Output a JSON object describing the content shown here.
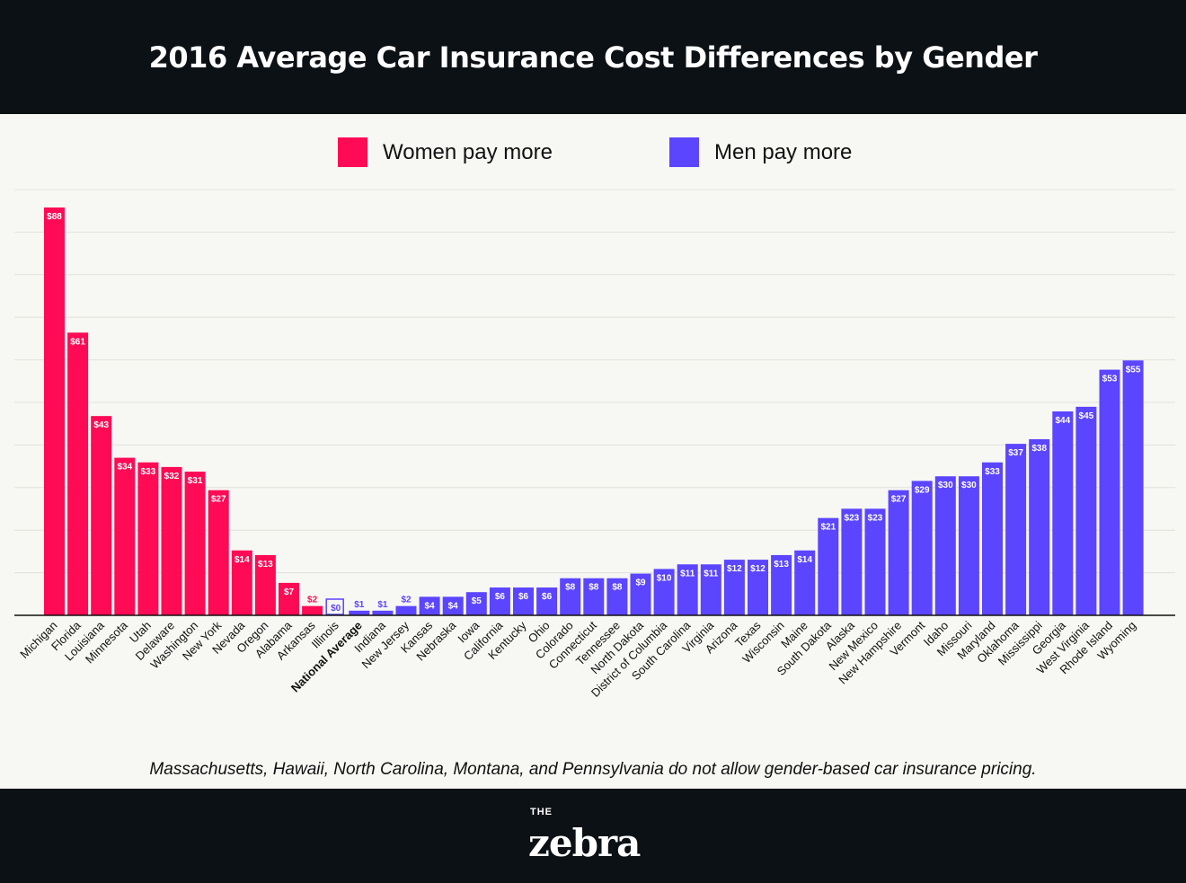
{
  "title": "2016 Average Car Insurance Cost Differences by Gender",
  "legend": [
    {
      "label": "Women pay more",
      "color": "#ff0a54"
    },
    {
      "label": "Men pay more",
      "color": "#5b45ff"
    }
  ],
  "note": "Massachusetts, Hawaii, North Carolina, Montana, and Pennsylvania do not allow gender-based car insurance pricing.",
  "logo": {
    "top": "THE",
    "main": "zebra"
  },
  "chart_data": {
    "type": "bar",
    "title": "2016 Average Car Insurance Cost Differences by Gender",
    "currency_prefix": "$",
    "grid": true,
    "legend_position": "top",
    "ylim": [
      0,
      92
    ],
    "categories": [
      "Michigan",
      "Florida",
      "Louisiana",
      "Minnesota",
      "Utah",
      "Delaware",
      "Washington",
      "New York",
      "Nevada",
      "Oregon",
      "Alabama",
      "Arkansas",
      "Illinois",
      "National Average",
      "Indiana",
      "New Jersey",
      "Kansas",
      "Nebraska",
      "Iowa",
      "California",
      "Kentucky",
      "Ohio",
      "Colorado",
      "Connecticut",
      "Tennessee",
      "North Dakota",
      "District of Columbia",
      "South Carolina",
      "Virginia",
      "Arizona",
      "Texas",
      "Wisconsin",
      "Maine",
      "South Dakota",
      "Alaska",
      "New Mexico",
      "New Hampshire",
      "Vermont",
      "Idaho",
      "Missouri",
      "Maryland",
      "Oklahoma",
      "Mississippi",
      "Georgia",
      "West Virginia",
      "Rhode Island",
      "Wyoming"
    ],
    "values": [
      88,
      61,
      43,
      34,
      33,
      32,
      31,
      27,
      14,
      13,
      7,
      2,
      0,
      1,
      1,
      2,
      4,
      4,
      5,
      6,
      6,
      6,
      8,
      8,
      8,
      9,
      10,
      11,
      11,
      12,
      12,
      13,
      14,
      21,
      23,
      23,
      27,
      29,
      30,
      30,
      33,
      37,
      38,
      44,
      45,
      53,
      55
    ],
    "groups": [
      "women",
      "women",
      "women",
      "women",
      "women",
      "women",
      "women",
      "women",
      "women",
      "women",
      "women",
      "women",
      "men",
      "men",
      "men",
      "men",
      "men",
      "men",
      "men",
      "men",
      "men",
      "men",
      "men",
      "men",
      "men",
      "men",
      "men",
      "men",
      "men",
      "men",
      "men",
      "men",
      "men",
      "men",
      "men",
      "men",
      "men",
      "men",
      "men",
      "men",
      "men",
      "men",
      "men",
      "men",
      "men",
      "men",
      "men"
    ],
    "highlight": "National Average"
  }
}
